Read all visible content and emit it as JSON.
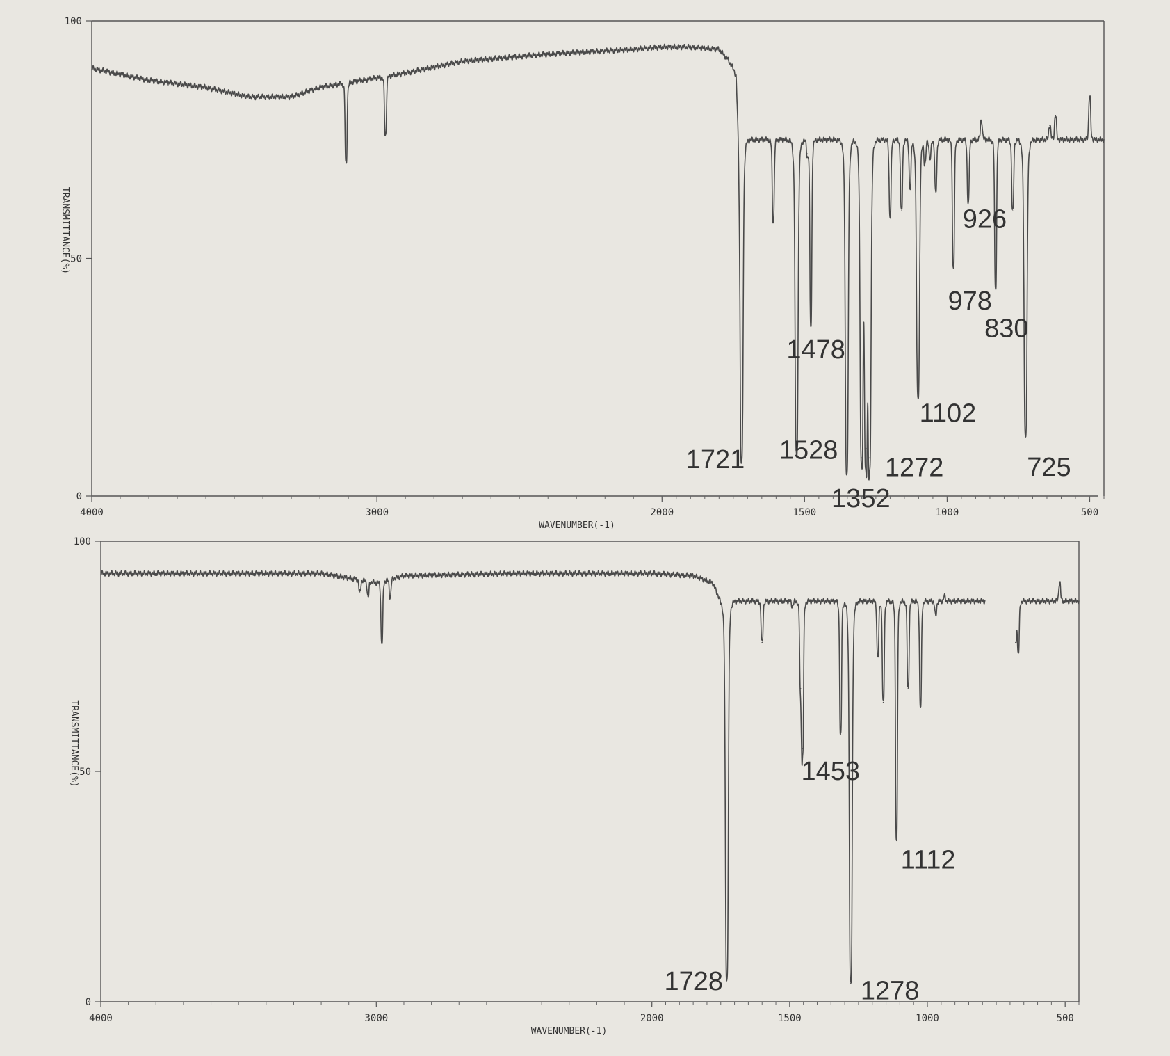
{
  "chart_data": [
    {
      "type": "line",
      "xlabel": "WAVENUMBER(-1)",
      "ylabel": "TRANSMITTANCE(%)",
      "xlim": [
        4000,
        450
      ],
      "ylim": [
        0,
        100
      ],
      "x_ticks": [
        "4000",
        "3000",
        "2000",
        "1500",
        "1000",
        "500"
      ],
      "y_ticks": [
        "100",
        "50",
        "0"
      ],
      "grid": false,
      "baseline": [
        [
          4000,
          90
        ],
        [
          3800,
          87.5
        ],
        [
          3600,
          86
        ],
        [
          3450,
          84
        ],
        [
          3300,
          84
        ],
        [
          3200,
          86
        ],
        [
          3100,
          87
        ],
        [
          3000,
          88
        ],
        [
          2900,
          89
        ],
        [
          2700,
          91.5
        ],
        [
          2400,
          93
        ],
        [
          2100,
          94
        ],
        [
          2000,
          94.5
        ],
        [
          1900,
          94.5
        ],
        [
          1800,
          94
        ],
        [
          1770,
          92
        ],
        [
          1740,
          89
        ],
        [
          1730,
          75
        ]
      ],
      "peaks": [
        {
          "x": 3108,
          "depth": 70
        },
        {
          "x": 2970,
          "depth": 76
        },
        {
          "x": 1721,
          "depth": 7
        },
        {
          "x": 1610,
          "depth": 58
        },
        {
          "x": 1580,
          "depth": 75
        },
        {
          "x": 1528,
          "depth": 9
        },
        {
          "x": 1490,
          "depth": 72
        },
        {
          "x": 1478,
          "depth": 36
        },
        {
          "x": 1352,
          "depth": 5
        },
        {
          "x": 1300,
          "depth": 8
        },
        {
          "x": 1285,
          "depth": 10
        },
        {
          "x": 1272,
          "depth": 8
        },
        {
          "x": 1200,
          "depth": 59
        },
        {
          "x": 1160,
          "depth": 60
        },
        {
          "x": 1130,
          "depth": 65
        },
        {
          "x": 1102,
          "depth": 21
        },
        {
          "x": 1078,
          "depth": 70
        },
        {
          "x": 1060,
          "depth": 71
        },
        {
          "x": 1040,
          "depth": 64
        },
        {
          "x": 1000,
          "depth": 75
        },
        {
          "x": 978,
          "depth": 48
        },
        {
          "x": 926,
          "depth": 62
        },
        {
          "x": 880,
          "depth": 79
        },
        {
          "x": 830,
          "depth": 44
        },
        {
          "x": 770,
          "depth": 60
        },
        {
          "x": 725,
          "depth": 13
        },
        {
          "x": 640,
          "depth": 78
        },
        {
          "x": 620,
          "depth": 80
        },
        {
          "x": 500,
          "depth": 84
        }
      ],
      "annotations": [
        {
          "x": 1721,
          "y": 7,
          "label": "1721"
        },
        {
          "x": 1528,
          "y": 9,
          "label": "1528"
        },
        {
          "x": 1478,
          "y": 36,
          "label": "1478"
        },
        {
          "x": 1352,
          "y": 5,
          "label": "1352"
        },
        {
          "x": 1272,
          "y": 8,
          "label": "1272"
        },
        {
          "x": 1102,
          "y": 21,
          "label": "1102"
        },
        {
          "x": 978,
          "y": 48,
          "label": "978"
        },
        {
          "x": 926,
          "y": 62,
          "label": "926"
        },
        {
          "x": 830,
          "y": 44,
          "label": "830"
        },
        {
          "x": 725,
          "y": 13,
          "label": "725"
        }
      ]
    },
    {
      "type": "line",
      "xlabel": "WAVENUMBER(-1)",
      "ylabel": "TRANSMITTANCE(%)",
      "xlim": [
        4000,
        450
      ],
      "ylim": [
        0,
        100
      ],
      "x_ticks": [
        "4000",
        "3000",
        "2000",
        "1500",
        "1000",
        "500"
      ],
      "y_ticks": [
        "100",
        "50",
        "0"
      ],
      "grid": false,
      "baseline": [
        [
          4000,
          93
        ],
        [
          3200,
          93
        ],
        [
          3100,
          92
        ],
        [
          3000,
          91
        ],
        [
          2900,
          92.5
        ],
        [
          2500,
          93
        ],
        [
          2000,
          93
        ],
        [
          1850,
          92.5
        ],
        [
          1780,
          91
        ],
        [
          1750,
          87
        ]
      ],
      "gap": [
        790,
        680
      ],
      "peaks": [
        {
          "x": 3060,
          "depth": 89
        },
        {
          "x": 3030,
          "depth": 88
        },
        {
          "x": 2980,
          "depth": 78
        },
        {
          "x": 2950,
          "depth": 88
        },
        {
          "x": 1728,
          "depth": 5
        },
        {
          "x": 1600,
          "depth": 78
        },
        {
          "x": 1490,
          "depth": 86
        },
        {
          "x": 1460,
          "depth": 68
        },
        {
          "x": 1453,
          "depth": 55
        },
        {
          "x": 1315,
          "depth": 58
        },
        {
          "x": 1278,
          "depth": 4
        },
        {
          "x": 1180,
          "depth": 75
        },
        {
          "x": 1160,
          "depth": 65
        },
        {
          "x": 1112,
          "depth": 35
        },
        {
          "x": 1070,
          "depth": 68
        },
        {
          "x": 1025,
          "depth": 64
        },
        {
          "x": 970,
          "depth": 84
        },
        {
          "x": 938,
          "depth": 88
        },
        {
          "x": 680,
          "depth": 78
        },
        {
          "x": 670,
          "depth": 76
        },
        {
          "x": 520,
          "depth": 91
        }
      ],
      "annotations": [
        {
          "x": 1728,
          "y": 5,
          "label": "1728"
        },
        {
          "x": 1453,
          "y": 55,
          "label": "1453"
        },
        {
          "x": 1278,
          "y": 4,
          "label": "1278"
        },
        {
          "x": 1112,
          "y": 35,
          "label": "1112"
        }
      ]
    }
  ]
}
